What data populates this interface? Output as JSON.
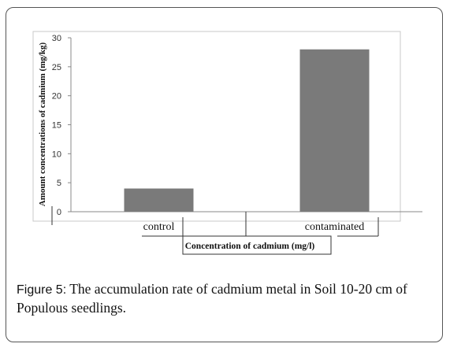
{
  "chart_data": {
    "type": "bar",
    "categories": [
      "control",
      "contaminated"
    ],
    "values": [
      4,
      28
    ],
    "xlabel": "Concentration of cadmium (mg/l)",
    "ylabel": "Amount concentrations of cadmium (mg/kg)",
    "ylim": [
      0,
      30
    ],
    "yticks": [
      0,
      5,
      10,
      15,
      20,
      25,
      30
    ],
    "bar_color": "#7a7a7a",
    "grid": false,
    "legend": "none"
  },
  "caption": {
    "label": "Figure 5:",
    "text": " The accumulation rate of cadmium metal in Soil 10-20 cm of Populous seedlings."
  }
}
